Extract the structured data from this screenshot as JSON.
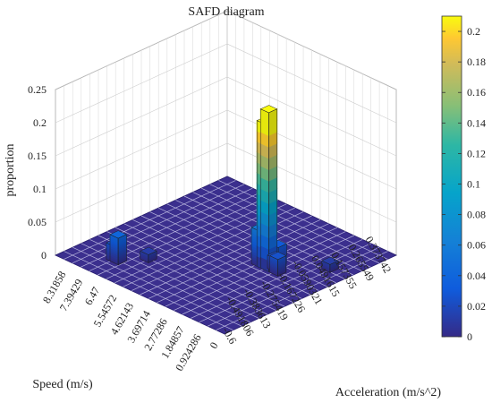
{
  "chart_data": {
    "type": "bar3d",
    "title": "SAFD diagram",
    "xlabel": "Speed (m/s)",
    "ylabel": "Acceleration (m/s^2)",
    "zlabel": "proportion",
    "speed_ticks": [
      "0",
      "0.924286",
      "1.84857",
      "2.77286",
      "3.69714",
      "4.62143",
      "5.54572",
      "6.47",
      "7.39429",
      "8.31858"
    ],
    "accel_ticks": [
      "-0.6",
      "-0.491806",
      "-0.383613",
      "-0.275419",
      "-0.167226",
      "-0.0590321",
      "0.0491615",
      "0.157355",
      "0.265549",
      "0.373742"
    ],
    "zlim": [
      0,
      0.25
    ],
    "z_ticks": [
      "0",
      "0.05",
      "0.1",
      "0.15",
      "0.2",
      "0.25"
    ],
    "grid": true,
    "colormap": "parula",
    "colorbar": {
      "placement": "right",
      "ticks": [
        "0",
        "0.02",
        "0.04",
        "0.06",
        "0.08",
        "0.1",
        "0.12",
        "0.14",
        "0.16",
        "0.18",
        "0.2"
      ],
      "range": [
        0,
        0.21
      ]
    },
    "bars": [
      {
        "speed": 2.7,
        "accel": -0.01,
        "value": 0.24
      },
      {
        "speed": 2.9,
        "accel": -0.01,
        "value": 0.22
      },
      {
        "speed": 3.2,
        "accel": -0.01,
        "value": 0.055
      },
      {
        "speed": 2.2,
        "accel": -0.01,
        "value": 0.025
      },
      {
        "speed": 2.5,
        "accel": 0.01,
        "value": 0.02
      },
      {
        "speed": 2.7,
        "accel": 0.05,
        "value": 0.03
      },
      {
        "speed": 1.0,
        "accel": 0.18,
        "value": 0.012
      },
      {
        "speed": 7.2,
        "accel": -0.44,
        "value": 0.04
      },
      {
        "speed": 7.4,
        "accel": -0.44,
        "value": 0.025
      },
      {
        "speed": 6.5,
        "accel": -0.33,
        "value": 0.012
      },
      {
        "speed": 3.6,
        "accel": 0.06,
        "value": 0.015
      }
    ]
  }
}
